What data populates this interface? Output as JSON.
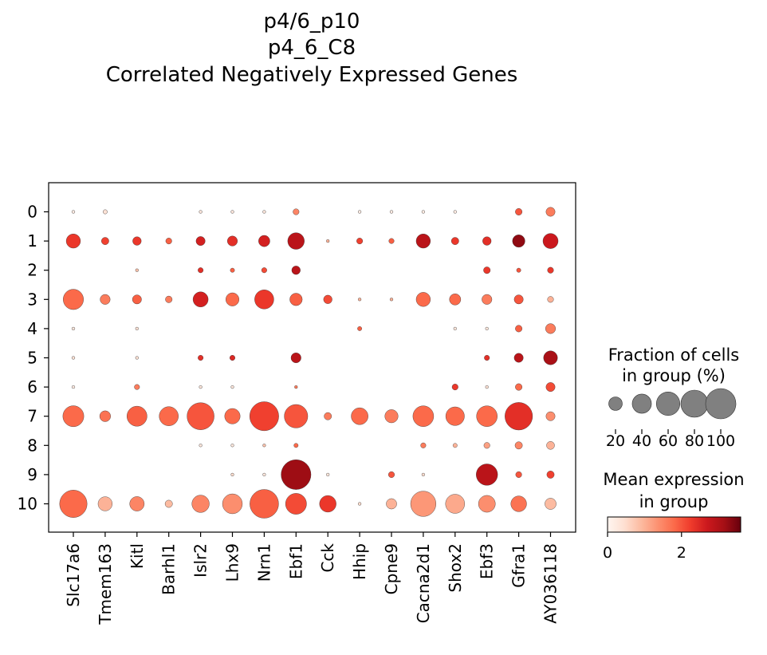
{
  "chart_data": {
    "type": "dotplot",
    "title_lines": [
      "p4/6_p10",
      "p4_6_C8",
      "Correlated Negatively Expressed Genes"
    ],
    "genes": [
      "Slc17a6",
      "Tmem163",
      "Kitl",
      "Barhl1",
      "Islr2",
      "Lhx9",
      "Nrn1",
      "Ebf1",
      "Cck",
      "Hhip",
      "Cpne9",
      "Cacna2d1",
      "Shox2",
      "Ebf3",
      "Gfra1",
      "AY036118"
    ],
    "groups": [
      "0",
      "1",
      "2",
      "3",
      "4",
      "5",
      "6",
      "7",
      "8",
      "9",
      "10"
    ],
    "fraction_pct": [
      [
        1,
        2,
        0,
        0,
        1,
        1,
        1,
        4,
        0,
        1,
        1,
        1,
        1,
        0,
        5,
        9
      ],
      [
        22,
        6,
        8,
        4,
        9,
        11,
        14,
        30,
        1,
        4,
        3,
        22,
        6,
        8,
        17,
        25
      ],
      [
        0,
        0,
        1,
        0,
        3,
        2,
        3,
        8,
        0,
        0,
        0,
        0,
        0,
        5,
        2,
        4
      ],
      [
        45,
        11,
        9,
        5,
        25,
        19,
        40,
        17,
        8,
        1,
        1,
        22,
        14,
        11,
        9,
        4
      ],
      [
        1,
        0,
        1,
        0,
        0,
        0,
        0,
        0,
        0,
        2,
        0,
        0,
        1,
        1,
        5,
        11
      ],
      [
        1,
        0,
        1,
        0,
        3,
        3,
        0,
        11,
        0,
        0,
        0,
        0,
        0,
        3,
        9,
        21
      ],
      [
        1,
        0,
        3,
        0,
        1,
        1,
        0,
        1,
        0,
        0,
        0,
        0,
        4,
        1,
        5,
        9
      ],
      [
        48,
        13,
        44,
        40,
        80,
        26,
        92,
        60,
        6,
        31,
        19,
        47,
        38,
        47,
        83,
        9
      ],
      [
        0,
        0,
        0,
        0,
        1,
        1,
        1,
        2,
        0,
        0,
        0,
        3,
        2,
        4,
        6,
        7
      ],
      [
        0,
        0,
        0,
        0,
        0,
        1,
        1,
        97,
        1,
        0,
        4,
        1,
        0,
        50,
        4,
        6
      ],
      [
        82,
        22,
        23,
        6,
        33,
        43,
        90,
        48,
        30,
        1,
        12,
        70,
        40,
        31,
        27,
        14
      ]
    ],
    "mean_expr": [
      [
        0.2,
        0.4,
        0,
        0,
        0.3,
        0.3,
        0.3,
        1.5,
        0,
        0.2,
        0.2,
        0.2,
        0.2,
        0,
        2.0,
        1.6
      ],
      [
        2.3,
        2.2,
        2.3,
        1.9,
        2.6,
        2.4,
        2.6,
        2.9,
        1.0,
        2.2,
        1.9,
        2.9,
        2.3,
        2.4,
        3.3,
        2.7
      ],
      [
        0,
        0,
        0.8,
        0,
        2.4,
        1.9,
        2.1,
        2.9,
        0,
        0,
        0,
        0,
        0,
        2.3,
        2.0,
        2.3
      ],
      [
        1.8,
        1.6,
        1.9,
        1.6,
        2.6,
        1.8,
        2.3,
        1.9,
        2.1,
        1.0,
        1.0,
        1.8,
        1.8,
        1.6,
        2.0,
        1.0
      ],
      [
        0.3,
        0,
        0.4,
        0,
        0,
        0,
        0,
        0,
        0,
        1.9,
        0,
        0,
        0.3,
        0.3,
        1.9,
        1.6
      ],
      [
        0.4,
        0,
        0.4,
        0,
        2.4,
        2.5,
        0,
        2.9,
        0,
        0,
        0,
        0,
        0,
        2.4,
        2.9,
        3.1
      ],
      [
        0.2,
        0,
        1.6,
        0,
        0.3,
        0.3,
        0,
        1.6,
        0,
        0,
        0,
        0,
        2.3,
        0.4,
        1.8,
        2.1
      ],
      [
        1.8,
        1.7,
        1.9,
        1.8,
        2.0,
        1.8,
        2.2,
        2.0,
        1.6,
        1.8,
        1.6,
        1.8,
        1.8,
        1.8,
        2.4,
        1.4
      ],
      [
        0,
        0,
        0,
        0,
        0.3,
        0.3,
        0.8,
        1.8,
        0,
        0,
        0,
        1.6,
        1.0,
        1.2,
        1.5,
        1.0
      ],
      [
        0,
        0,
        0,
        0,
        0,
        0.5,
        0.3,
        3.2,
        0.3,
        0,
        2.0,
        0.5,
        0,
        2.9,
        2.0,
        2.2
      ],
      [
        1.8,
        1.0,
        1.5,
        0.9,
        1.5,
        1.4,
        1.9,
        2.1,
        2.3,
        0.5,
        1.0,
        1.3,
        1.1,
        1.4,
        1.7,
        0.9
      ]
    ],
    "size_legend": {
      "title_lines": [
        "Fraction of cells",
        "in group (%)"
      ],
      "ticks": [
        20,
        40,
        60,
        80,
        100
      ]
    },
    "color_legend": {
      "title_lines": [
        "Mean expression",
        "in group"
      ],
      "ticks": [
        0,
        2
      ],
      "vmin": 0,
      "vmax": 3.6,
      "colormap": "Reds",
      "stops": [
        "#fff5f0",
        "#fee0d2",
        "#fcbba1",
        "#fc9272",
        "#fb6a4a",
        "#ef3b2c",
        "#cb181d",
        "#a50f15",
        "#67000d"
      ]
    }
  }
}
